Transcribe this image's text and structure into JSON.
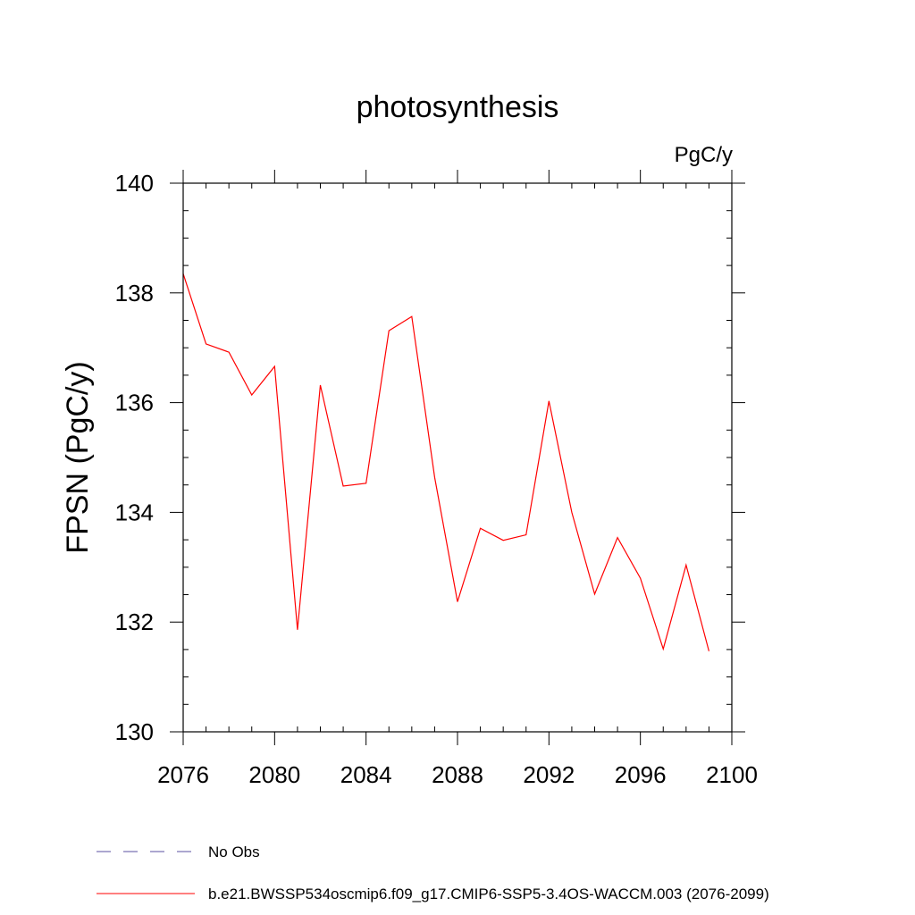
{
  "chart_data": {
    "type": "line",
    "title": "photosynthesis",
    "units_label": "PgC/y",
    "ylabel": "FPSN  (PgC/y)",
    "xlabel": "",
    "xlim": [
      2076,
      2100
    ],
    "ylim": [
      130,
      140
    ],
    "x_ticks": [
      2076,
      2080,
      2084,
      2088,
      2092,
      2096,
      2100
    ],
    "y_ticks": [
      130,
      132,
      134,
      136,
      138,
      140
    ],
    "x_minor_step": 1,
    "y_minor_step": 0.5,
    "grid": false,
    "legend_position": "bottom",
    "series": [
      {
        "name": "b.e21.BWSSP534oscmip6.f09_g17.CMIP6-SSP5-3.4OS-WACCM.003 (2076-2099)",
        "color": "#ff0000",
        "style": "solid",
        "x": [
          2076,
          2077,
          2078,
          2079,
          2080,
          2081,
          2082,
          2083,
          2084,
          2085,
          2086,
          2087,
          2088,
          2089,
          2090,
          2091,
          2092,
          2093,
          2094,
          2095,
          2096,
          2097,
          2098,
          2099
        ],
        "values": [
          138.35,
          137.07,
          136.92,
          136.14,
          136.66,
          131.86,
          136.32,
          134.48,
          134.53,
          137.31,
          137.57,
          134.64,
          132.37,
          133.71,
          133.49,
          133.59,
          136.03,
          134.0,
          132.51,
          133.54,
          132.8,
          131.51,
          133.04,
          131.47
        ]
      }
    ]
  },
  "legend": {
    "items": [
      {
        "label": "No Obs",
        "color": "#5a4fa0",
        "style": "dashed"
      },
      {
        "label": "b.e21.BWSSP534oscmip6.f09_g17.CMIP6-SSP5-3.4OS-WACCM.003 (2076-2099)",
        "color": "#ff0000",
        "style": "solid"
      }
    ]
  }
}
